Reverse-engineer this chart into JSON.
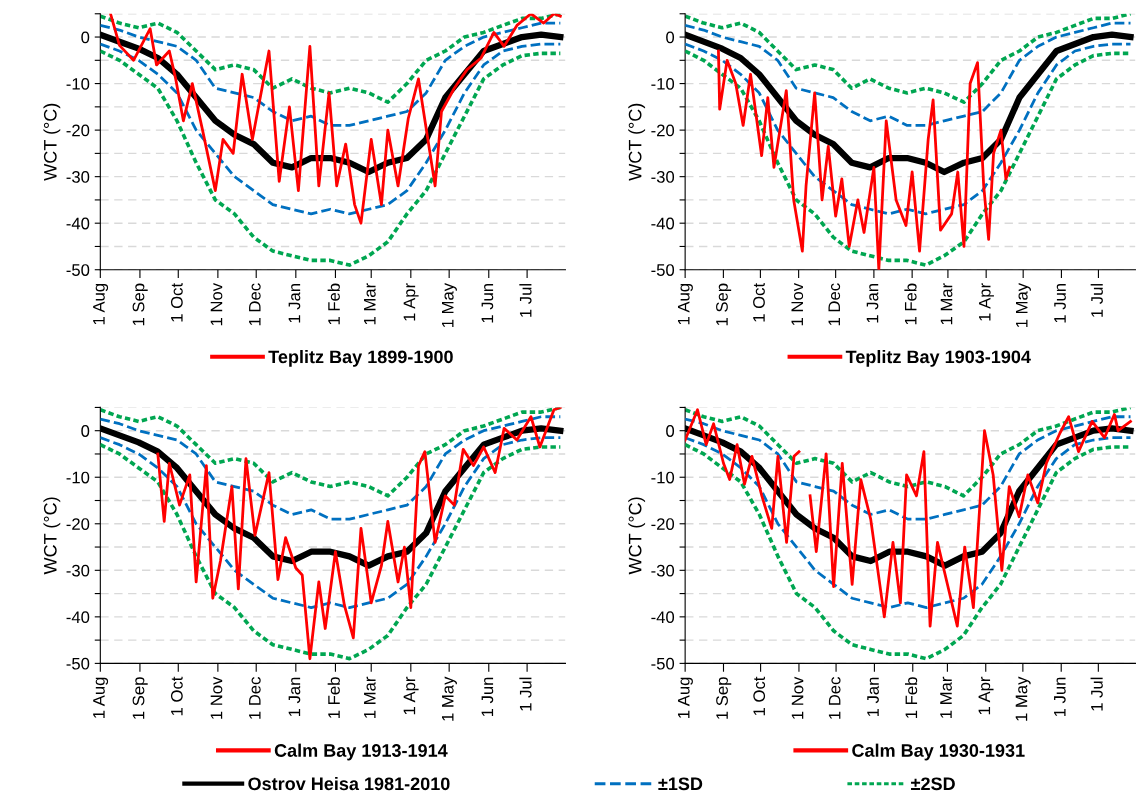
{
  "chart_data": [
    {
      "type": "line",
      "ylabel": "WCT (°C)",
      "xlim": [
        "1899-08-01",
        "1900-07-31"
      ],
      "ylim": [
        -50,
        5
      ],
      "grid": "y",
      "legend": "bottom",
      "xticks": [
        {
          "value": "1899-08-01",
          "label": "1 Aug"
        },
        {
          "value": "1899-09-01",
          "label": "1 Sep"
        },
        {
          "value": "1899-10-01",
          "label": "1 Oct"
        },
        {
          "value": "1899-11-01",
          "label": "1 Nov"
        },
        {
          "value": "1899-12-01",
          "label": "1 Dec"
        },
        {
          "value": "1900-01-01",
          "label": "1 Jan"
        },
        {
          "value": "1900-02-01",
          "label": "1 Feb"
        },
        {
          "value": "1900-03-01",
          "label": "1 Mar"
        },
        {
          "value": "1900-04-01",
          "label": "1 Apr"
        },
        {
          "value": "1900-05-01",
          "label": "1 May"
        },
        {
          "value": "1900-06-01",
          "label": "1 Jun"
        },
        {
          "value": "1900-07-01",
          "label": "1 Jul"
        }
      ],
      "yticks": [
        -50,
        {
          "value": -45,
          "label": null
        },
        -40,
        {
          "value": -35,
          "label": null
        },
        -30,
        {
          "value": -25,
          "label": null
        },
        -20,
        {
          "value": -15,
          "label": null
        },
        -10,
        {
          "value": -5,
          "label": null
        },
        0,
        {
          "value": 5,
          "label": null
        }
      ],
      "x": [
        "1899-08-01",
        "1899-08-16",
        "1899-08-31",
        "1899-09-15",
        "1899-09-30",
        "1899-10-15",
        "1899-10-30",
        "1899-11-14",
        "1899-11-29",
        "1899-12-14",
        "1899-12-29",
        "1900-01-13",
        "1900-01-28",
        "1900-02-12",
        "1900-02-27",
        "1900-03-14",
        "1900-03-29",
        "1900-04-13",
        "1900-04-28",
        "1900-05-13",
        "1900-05-28",
        "1900-06-12",
        "1900-06-27",
        "1900-07-12",
        "1900-07-27"
      ],
      "series": [
        {
          "name": "±2SD",
          "color": "#00a651",
          "line_style": "dotted",
          "values": [
            4.5,
            3,
            2,
            3,
            1,
            -3,
            -7,
            -6,
            -7,
            -11,
            -9,
            -11,
            -12,
            -11,
            -12,
            -14,
            -10,
            -5,
            -3,
            0,
            1,
            2.5,
            4,
            4,
            5
          ]
        },
        {
          "color": "#00a651",
          "line_style": "dotted",
          "values": [
            -3,
            -5,
            -8,
            -11,
            -18,
            -27,
            -35,
            -38,
            -43,
            -46,
            -47,
            -48,
            -48,
            -49,
            -47,
            -44,
            -38,
            -33,
            -25,
            -17,
            -9,
            -6,
            -4,
            -3.5,
            -3.5
          ]
        },
        {
          "name": "±1SD",
          "color": "#0070c0",
          "line_style": "dashed",
          "values": [
            2.5,
            1.5,
            0,
            -1,
            -2,
            -5,
            -11,
            -12,
            -13,
            -16,
            -18,
            -17,
            -19,
            -19,
            -18,
            -17,
            -16,
            -12,
            -5,
            -2,
            0,
            1,
            2,
            3,
            3
          ]
        },
        {
          "color": "#0070c0",
          "line_style": "dashed",
          "values": [
            -1.5,
            -3,
            -5,
            -8,
            -12,
            -20,
            -25,
            -30,
            -33,
            -36,
            -37,
            -38,
            -37,
            -38,
            -37,
            -36,
            -33,
            -27,
            -20,
            -12,
            -6,
            -3,
            -2,
            -1.5,
            -1.5
          ]
        },
        {
          "name": "Ostrov Heisa 1981-2010",
          "color": "#000000",
          "line_style": "solid",
          "values": [
            0.5,
            -1,
            -2.5,
            -4.5,
            -8,
            -13,
            -18,
            -21,
            -23,
            -27,
            -28,
            -26,
            -26,
            -27,
            -29,
            -27,
            -26,
            -22,
            -13,
            -8,
            -3,
            -1.5,
            0,
            0.5,
            0
          ]
        },
        {
          "name": "Teplitz Bay 1899-1900",
          "color": "#ff0000",
          "line_style": "solid",
          "x": [
            "1899-08-09",
            "1899-08-16",
            "1899-08-27",
            "1899-09-09",
            "1899-09-14",
            "1899-09-24",
            "1899-09-29",
            "1899-10-05",
            "1899-10-12",
            "1899-10-20",
            "1899-10-30",
            "1899-11-05",
            "1899-11-13",
            "1899-11-20",
            "1899-11-28",
            "1899-12-11",
            "1899-12-19",
            "1899-12-27",
            "1900-01-03",
            "1900-01-12",
            "1900-01-19",
            "1900-01-27",
            "1900-02-02",
            "1900-02-09",
            "1900-02-16",
            "1900-02-21",
            "1900-03-01",
            "1900-03-09",
            "1900-03-14",
            "1900-03-22",
            "1900-03-30",
            "1900-04-07",
            "1900-04-20",
            "1900-04-25",
            "1900-05-05",
            "1900-05-15",
            "1900-05-26",
            "1900-06-05",
            "1900-06-13",
            "1900-06-23",
            "1900-07-04",
            "1900-07-14",
            "1900-07-22",
            "1900-07-27"
          ],
          "values": [
            5,
            -1.8,
            -5,
            1.8,
            -6,
            -3,
            -9,
            -18,
            -10,
            -20,
            -33,
            -22,
            -25,
            -8,
            -22,
            -3,
            -31,
            -15,
            -33,
            -2,
            -32,
            -12,
            -32,
            -23,
            -36,
            -40,
            -22,
            -36,
            -20,
            -32,
            -17.5,
            -9,
            -32,
            -16,
            -11,
            -7,
            -4.5,
            1,
            -2,
            2.5,
            5,
            3,
            5,
            4.5
          ]
        }
      ]
    },
    {
      "type": "line",
      "ylabel": "WCT (°C)",
      "xlim": [
        "1903-08-01",
        "1904-07-31"
      ],
      "ylim": [
        -50,
        5
      ],
      "grid": "y",
      "legend": "bottom",
      "xticks": [
        {
          "value": "1903-08-01",
          "label": "1 Aug"
        },
        {
          "value": "1903-09-01",
          "label": "1 Sep"
        },
        {
          "value": "1903-10-01",
          "label": "1 Oct"
        },
        {
          "value": "1903-11-01",
          "label": "1 Nov"
        },
        {
          "value": "1903-12-01",
          "label": "1 Dec"
        },
        {
          "value": "1904-01-01",
          "label": "1 Jan"
        },
        {
          "value": "1904-02-01",
          "label": "1 Feb"
        },
        {
          "value": "1904-03-01",
          "label": "1 Mar"
        },
        {
          "value": "1904-04-01",
          "label": "1 Apr"
        },
        {
          "value": "1904-05-01",
          "label": "1 May"
        },
        {
          "value": "1904-06-01",
          "label": "1 Jun"
        },
        {
          "value": "1904-07-01",
          "label": "1 Jul"
        }
      ],
      "yticks": [
        -50,
        {
          "value": -45,
          "label": null
        },
        -40,
        {
          "value": -35,
          "label": null
        },
        -30,
        {
          "value": -25,
          "label": null
        },
        -20,
        {
          "value": -15,
          "label": null
        },
        -10,
        {
          "value": -5,
          "label": null
        },
        0,
        {
          "value": 5,
          "label": null
        }
      ],
      "x": [
        "1903-08-01",
        "1903-08-16",
        "1903-08-31",
        "1903-09-15",
        "1903-09-30",
        "1903-10-15",
        "1903-10-30",
        "1903-11-14",
        "1903-11-29",
        "1903-12-14",
        "1903-12-29",
        "1904-01-13",
        "1904-01-28",
        "1904-02-12",
        "1904-02-27",
        "1904-03-14",
        "1904-03-29",
        "1904-04-13",
        "1904-04-28",
        "1904-05-13",
        "1904-05-28",
        "1904-06-12",
        "1904-06-27",
        "1904-07-12",
        "1904-07-27"
      ],
      "series": [
        {
          "color": "#00a651",
          "line_style": "dotted",
          "values": [
            4.5,
            3,
            2,
            3,
            1,
            -3,
            -7,
            -6,
            -7,
            -11,
            -9,
            -11,
            -12,
            -11,
            -12,
            -14,
            -10,
            -5,
            -3,
            0,
            1,
            2.5,
            4,
            4,
            5
          ]
        },
        {
          "color": "#00a651",
          "line_style": "dotted",
          "values": [
            -3,
            -5,
            -8,
            -11,
            -18,
            -27,
            -35,
            -38,
            -43,
            -46,
            -47,
            -48,
            -48,
            -49,
            -47,
            -44,
            -38,
            -33,
            -25,
            -17,
            -9,
            -6,
            -4,
            -3.5,
            -3.5
          ]
        },
        {
          "color": "#0070c0",
          "line_style": "dashed",
          "values": [
            2.5,
            1.5,
            0,
            -1,
            -2,
            -5,
            -11,
            -12,
            -13,
            -16,
            -18,
            -17,
            -19,
            -19,
            -18,
            -17,
            -16,
            -12,
            -5,
            -2,
            0,
            1,
            2,
            3,
            3
          ]
        },
        {
          "color": "#0070c0",
          "line_style": "dashed",
          "values": [
            -1.5,
            -3,
            -5,
            -8,
            -12,
            -20,
            -25,
            -30,
            -33,
            -36,
            -37,
            -38,
            -37,
            -38,
            -37,
            -36,
            -33,
            -27,
            -20,
            -12,
            -6,
            -3,
            -2,
            -1.5,
            -1.5
          ]
        },
        {
          "color": "#000000",
          "line_style": "solid",
          "values": [
            0.5,
            -1,
            -2.5,
            -4.5,
            -8,
            -13,
            -18,
            -21,
            -23,
            -27,
            -28,
            -26,
            -26,
            -27,
            -29,
            -27,
            -26,
            -22,
            -13,
            -8,
            -3,
            -1.5,
            0,
            0.5,
            0
          ]
        },
        {
          "name": "Teplitz Bay 1903-1904",
          "color": "#ff0000",
          "line_style": "solid",
          "x": [
            "1903-08-28",
            "1903-08-29",
            "1903-09-04",
            "1903-09-11",
            "1903-09-17",
            "1903-09-23",
            "1903-10-02",
            "1903-10-07",
            "1903-10-12",
            "1903-10-22",
            "1903-10-28",
            "1903-11-04",
            "1903-11-07",
            "1903-11-14",
            "1903-11-20",
            "1903-11-25",
            "1903-12-01",
            "1903-12-06",
            "1903-12-12",
            "1903-12-19",
            "1903-12-24",
            "1904-01-01",
            "1904-01-05",
            "1904-01-11",
            "1904-01-19",
            "1904-01-27",
            "1904-02-01",
            "1904-02-07",
            "1904-02-14",
            "1904-02-18",
            "1904-02-24",
            "1904-03-04",
            "1904-03-09",
            "1904-03-14",
            "1904-03-19",
            "1904-03-25",
            "1904-03-30",
            "1904-04-03",
            "1904-04-07",
            "1904-04-13",
            "1904-04-17",
            "1904-04-20"
          ],
          "values": [
            -3,
            -15.5,
            -5,
            -10,
            -19,
            -8,
            -25.5,
            -13,
            -28,
            -11.5,
            -35,
            -46,
            -32,
            -12,
            -35,
            -23.5,
            -38.5,
            -30.5,
            -45,
            -35,
            -42,
            -28,
            -50,
            -18,
            -35,
            -40.5,
            -29,
            -46,
            -22,
            -13.5,
            -41.5,
            -38,
            -29,
            -45,
            -10,
            -5.5,
            -32,
            -43.5,
            -25,
            -20,
            -30.5,
            -28
          ]
        }
      ]
    },
    {
      "type": "line",
      "ylabel": "WCT (°C)",
      "xlim": [
        "1913-08-01",
        "1914-07-31"
      ],
      "ylim": [
        -50,
        5
      ],
      "grid": "y",
      "legend": "bottom",
      "xticks": [
        {
          "value": "1913-08-01",
          "label": "1 Aug"
        },
        {
          "value": "1913-09-01",
          "label": "1 Sep"
        },
        {
          "value": "1913-10-01",
          "label": "1 Oct"
        },
        {
          "value": "1913-11-01",
          "label": "1 Nov"
        },
        {
          "value": "1913-12-01",
          "label": "1 Dec"
        },
        {
          "value": "1914-01-01",
          "label": "1 Jan"
        },
        {
          "value": "1914-02-01",
          "label": "1 Feb"
        },
        {
          "value": "1914-03-01",
          "label": "1 Mar"
        },
        {
          "value": "1914-04-01",
          "label": "1 Apr"
        },
        {
          "value": "1914-05-01",
          "label": "1 May"
        },
        {
          "value": "1914-06-01",
          "label": "1 Jun"
        },
        {
          "value": "1914-07-01",
          "label": "1 Jul"
        }
      ],
      "yticks": [
        -50,
        {
          "value": -45,
          "label": null
        },
        -40,
        {
          "value": -35,
          "label": null
        },
        -30,
        {
          "value": -25,
          "label": null
        },
        -20,
        {
          "value": -15,
          "label": null
        },
        -10,
        {
          "value": -5,
          "label": null
        },
        0,
        {
          "value": 5,
          "label": null
        }
      ],
      "x": [
        "1913-08-01",
        "1913-08-16",
        "1913-08-31",
        "1913-09-15",
        "1913-09-30",
        "1913-10-15",
        "1913-10-30",
        "1913-11-14",
        "1913-11-29",
        "1913-12-14",
        "1913-12-29",
        "1914-01-13",
        "1914-01-28",
        "1914-02-12",
        "1914-02-27",
        "1914-03-14",
        "1914-03-29",
        "1914-04-13",
        "1914-04-28",
        "1914-05-13",
        "1914-05-28",
        "1914-06-12",
        "1914-06-27",
        "1914-07-12",
        "1914-07-27"
      ],
      "series": [
        {
          "color": "#00a651",
          "line_style": "dotted",
          "values": [
            4.5,
            3,
            2,
            3,
            1,
            -3,
            -7,
            -6,
            -7,
            -11,
            -9,
            -11,
            -12,
            -11,
            -12,
            -14,
            -10,
            -5,
            -3,
            0,
            1,
            2.5,
            4,
            4,
            5
          ]
        },
        {
          "color": "#00a651",
          "line_style": "dotted",
          "values": [
            -3,
            -5,
            -8,
            -11,
            -18,
            -27,
            -35,
            -38,
            -43,
            -46,
            -47,
            -48,
            -48,
            -49,
            -47,
            -44,
            -38,
            -33,
            -25,
            -17,
            -9,
            -6,
            -4,
            -3.5,
            -3.5
          ]
        },
        {
          "color": "#0070c0",
          "line_style": "dashed",
          "values": [
            2.5,
            1.5,
            0,
            -1,
            -2,
            -5,
            -11,
            -12,
            -13,
            -16,
            -18,
            -17,
            -19,
            -19,
            -18,
            -17,
            -16,
            -12,
            -5,
            -2,
            0,
            1,
            2,
            3,
            3
          ]
        },
        {
          "color": "#0070c0",
          "line_style": "dashed",
          "values": [
            -1.5,
            -3,
            -5,
            -8,
            -12,
            -20,
            -25,
            -30,
            -33,
            -36,
            -37,
            -38,
            -37,
            -38,
            -37,
            -36,
            -33,
            -27,
            -20,
            -12,
            -6,
            -3,
            -2,
            -1.5,
            -1.5
          ]
        },
        {
          "color": "#000000",
          "line_style": "solid",
          "values": [
            0.5,
            -1,
            -2.5,
            -4.5,
            -8,
            -13,
            -18,
            -21,
            -23,
            -27,
            -28,
            -26,
            -26,
            -27,
            -29,
            -27,
            -26,
            -22,
            -13,
            -8,
            -3,
            -1.5,
            0,
            0.5,
            0
          ]
        },
        {
          "name": "Calm Bay 1913-1914",
          "color": "#ff0000",
          "line_style": "solid",
          "x": [
            "1913-09-15",
            "1913-09-20",
            "1913-09-24",
            "1913-10-02",
            "1913-10-10",
            "1913-10-15",
            "1913-10-23",
            "1913-10-28",
            "1913-11-03",
            "1913-11-12",
            "1913-11-17",
            "1913-11-23",
            "1913-11-30",
            "1913-12-11",
            "1913-12-18",
            "1913-12-24",
            "1914-01-01",
            "1914-01-06",
            "1914-01-12",
            "1914-01-19",
            "1914-01-24",
            "1914-02-01",
            "1914-02-08",
            "1914-02-15",
            "1914-02-21",
            "1914-03-01",
            "1914-03-09",
            "1914-03-14",
            "1914-03-22",
            "1914-03-27",
            "1914-04-01",
            "1914-04-07",
            "1914-04-12",
            "1914-04-20",
            "1914-04-28",
            "1914-05-05",
            "1914-05-12",
            "1914-05-20",
            "1914-05-28",
            "1914-06-06",
            "1914-06-13",
            "1914-06-23",
            "1914-07-04",
            "1914-07-11",
            "1914-07-22",
            "1914-07-27"
          ],
          "values": [
            -5,
            -19.5,
            -7,
            -16,
            -9.5,
            -32.5,
            -7.5,
            -36,
            -28,
            -12,
            -34,
            -6,
            -22.5,
            -9,
            -32,
            -23,
            -29.5,
            -31,
            -49,
            -32.5,
            -42.5,
            -26,
            -37.5,
            -44.5,
            -21,
            -37,
            -29,
            -19.5,
            -32.5,
            -25,
            -38,
            -7.5,
            -4.5,
            -24,
            -14,
            -16,
            -4,
            -7.5,
            -3.5,
            -9,
            0.5,
            -2,
            3,
            -3.5,
            4.5,
            5
          ]
        }
      ]
    },
    {
      "type": "line",
      "ylabel": "WCT (°C)",
      "xlim": [
        "1930-08-01",
        "1931-07-31"
      ],
      "ylim": [
        -50,
        5
      ],
      "grid": "y",
      "legend": "bottom",
      "xticks": [
        {
          "value": "1930-08-01",
          "label": "1 Aug"
        },
        {
          "value": "1930-09-01",
          "label": "1 Sep"
        },
        {
          "value": "1930-10-01",
          "label": "1 Oct"
        },
        {
          "value": "1930-11-01",
          "label": "1 Nov"
        },
        {
          "value": "1930-12-01",
          "label": "1 Dec"
        },
        {
          "value": "1931-01-01",
          "label": "1 Jan"
        },
        {
          "value": "1931-02-01",
          "label": "1 Feb"
        },
        {
          "value": "1931-03-01",
          "label": "1 Mar"
        },
        {
          "value": "1931-04-01",
          "label": "1 Apr"
        },
        {
          "value": "1931-05-01",
          "label": "1 May"
        },
        {
          "value": "1931-06-01",
          "label": "1 Jun"
        },
        {
          "value": "1931-07-01",
          "label": "1 Jul"
        }
      ],
      "yticks": [
        -50,
        {
          "value": -45,
          "label": null
        },
        -40,
        {
          "value": -35,
          "label": null
        },
        -30,
        {
          "value": -25,
          "label": null
        },
        -20,
        {
          "value": -15,
          "label": null
        },
        -10,
        {
          "value": -5,
          "label": null
        },
        0,
        {
          "value": 5,
          "label": null
        }
      ],
      "x": [
        "1930-08-01",
        "1930-08-16",
        "1930-08-31",
        "1930-09-15",
        "1930-09-30",
        "1930-10-15",
        "1930-10-30",
        "1930-11-14",
        "1930-11-29",
        "1930-12-14",
        "1930-12-29",
        "1931-01-13",
        "1931-01-28",
        "1931-02-12",
        "1931-02-27",
        "1931-03-14",
        "1931-03-29",
        "1931-04-13",
        "1931-04-28",
        "1931-05-13",
        "1931-05-28",
        "1931-06-12",
        "1931-06-27",
        "1931-07-12",
        "1931-07-27"
      ],
      "series": [
        {
          "color": "#00a651",
          "line_style": "dotted",
          "values": [
            4.5,
            3,
            2,
            3,
            1,
            -3,
            -7,
            -6,
            -7,
            -11,
            -9,
            -11,
            -12,
            -11,
            -12,
            -14,
            -10,
            -5,
            -3,
            0,
            1,
            2.5,
            4,
            4,
            5
          ]
        },
        {
          "color": "#00a651",
          "line_style": "dotted",
          "values": [
            -3,
            -5,
            -8,
            -11,
            -18,
            -27,
            -35,
            -38,
            -43,
            -46,
            -47,
            -48,
            -48,
            -49,
            -47,
            -44,
            -38,
            -33,
            -25,
            -17,
            -9,
            -6,
            -4,
            -3.5,
            -3.5
          ]
        },
        {
          "color": "#0070c0",
          "line_style": "dashed",
          "values": [
            2.5,
            1.5,
            0,
            -1,
            -2,
            -5,
            -11,
            -12,
            -13,
            -16,
            -18,
            -17,
            -19,
            -19,
            -18,
            -17,
            -16,
            -12,
            -5,
            -2,
            0,
            1,
            2,
            3,
            3
          ]
        },
        {
          "color": "#0070c0",
          "line_style": "dashed",
          "values": [
            -1.5,
            -3,
            -5,
            -8,
            -12,
            -20,
            -25,
            -30,
            -33,
            -36,
            -37,
            -38,
            -37,
            -38,
            -37,
            -36,
            -33,
            -27,
            -20,
            -12,
            -6,
            -3,
            -2,
            -1.5,
            -1.5
          ]
        },
        {
          "color": "#000000",
          "line_style": "solid",
          "values": [
            0.5,
            -1,
            -2.5,
            -4.5,
            -8,
            -13,
            -18,
            -21,
            -23,
            -27,
            -28,
            -26,
            -26,
            -27,
            -29,
            -27,
            -26,
            -22,
            -13,
            -8,
            -3,
            -1.5,
            0,
            0.5,
            0
          ]
        },
        {
          "name": "Calm Bay 1930-1931",
          "color": "#ff0000",
          "line_style": "solid",
          "x": [
            "1930-08-01",
            "1930-08-11",
            "1930-08-18",
            "1930-08-24",
            "1930-09-01",
            "1930-09-06",
            "1930-09-12",
            "1930-09-18",
            "1930-09-24",
            "1930-10-02",
            "1930-10-10",
            "1930-10-15",
            "1930-10-22",
            "1930-10-28",
            "1930-11-01",
            "1930-11-05",
            "1930-11-10",
            "1930-11-15",
            "1930-11-23",
            "1930-11-29",
            "1930-12-06",
            "1930-12-14",
            "1930-12-21",
            "1930-12-29",
            "1931-01-09",
            "1931-01-16",
            "1931-01-22",
            "1931-01-27",
            "1931-02-04",
            "1931-02-10",
            "1931-02-15",
            "1931-02-21",
            "1931-03-01",
            "1931-03-09",
            "1931-03-15",
            "1931-03-22",
            "1931-03-31",
            "1931-04-07",
            "1931-04-14",
            "1931-04-20",
            "1931-04-28",
            "1931-05-05",
            "1931-05-13",
            "1931-05-20",
            "1931-05-31",
            "1931-06-07",
            "1931-06-15",
            "1931-06-26",
            "1931-07-06",
            "1931-07-14",
            "1931-07-17",
            "1931-07-27"
          ],
          "values": [
            -2,
            4.5,
            -3,
            1.5,
            -7,
            -10.5,
            -3,
            -11.5,
            -5.5,
            -14,
            -21,
            -5.5,
            -24,
            -5.5,
            -4.5,
            null,
            -14,
            -26,
            -5,
            -33.5,
            -7,
            -33,
            -10.5,
            -19,
            -40,
            -24,
            -37,
            -9.5,
            -14,
            -4.5,
            -42,
            -24,
            -33,
            -42,
            -25,
            -38,
            0,
            -9.5,
            -30,
            -12,
            -18.5,
            -9.5,
            -15.5,
            -7,
            -0.5,
            3,
            -4.5,
            2,
            -1.5,
            3.5,
            0,
            2
          ]
        }
      ]
    }
  ]
}
